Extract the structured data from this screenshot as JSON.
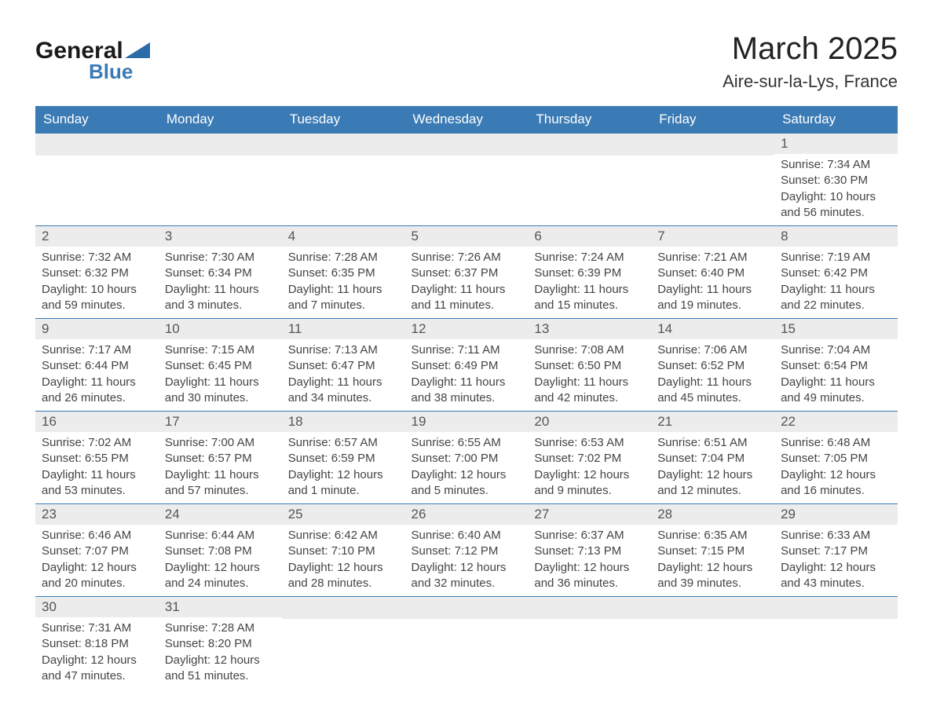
{
  "brand": {
    "name1": "General",
    "name2": "Blue"
  },
  "title": "March 2025",
  "location": "Aire-sur-la-Lys, France",
  "colors": {
    "header_bg": "#3a7ab5",
    "header_text": "#ffffff",
    "daynum_bg": "#ececec",
    "border": "#3a7ab5",
    "body_text": "#444444",
    "title_text": "#222222"
  },
  "weekdays": [
    "Sunday",
    "Monday",
    "Tuesday",
    "Wednesday",
    "Thursday",
    "Friday",
    "Saturday"
  ],
  "weeks": [
    [
      {
        "num": "",
        "sunrise": "",
        "sunset": "",
        "daylight": ""
      },
      {
        "num": "",
        "sunrise": "",
        "sunset": "",
        "daylight": ""
      },
      {
        "num": "",
        "sunrise": "",
        "sunset": "",
        "daylight": ""
      },
      {
        "num": "",
        "sunrise": "",
        "sunset": "",
        "daylight": ""
      },
      {
        "num": "",
        "sunrise": "",
        "sunset": "",
        "daylight": ""
      },
      {
        "num": "",
        "sunrise": "",
        "sunset": "",
        "daylight": ""
      },
      {
        "num": "1",
        "sunrise": "Sunrise: 7:34 AM",
        "sunset": "Sunset: 6:30 PM",
        "daylight": "Daylight: 10 hours and 56 minutes."
      }
    ],
    [
      {
        "num": "2",
        "sunrise": "Sunrise: 7:32 AM",
        "sunset": "Sunset: 6:32 PM",
        "daylight": "Daylight: 10 hours and 59 minutes."
      },
      {
        "num": "3",
        "sunrise": "Sunrise: 7:30 AM",
        "sunset": "Sunset: 6:34 PM",
        "daylight": "Daylight: 11 hours and 3 minutes."
      },
      {
        "num": "4",
        "sunrise": "Sunrise: 7:28 AM",
        "sunset": "Sunset: 6:35 PM",
        "daylight": "Daylight: 11 hours and 7 minutes."
      },
      {
        "num": "5",
        "sunrise": "Sunrise: 7:26 AM",
        "sunset": "Sunset: 6:37 PM",
        "daylight": "Daylight: 11 hours and 11 minutes."
      },
      {
        "num": "6",
        "sunrise": "Sunrise: 7:24 AM",
        "sunset": "Sunset: 6:39 PM",
        "daylight": "Daylight: 11 hours and 15 minutes."
      },
      {
        "num": "7",
        "sunrise": "Sunrise: 7:21 AM",
        "sunset": "Sunset: 6:40 PM",
        "daylight": "Daylight: 11 hours and 19 minutes."
      },
      {
        "num": "8",
        "sunrise": "Sunrise: 7:19 AM",
        "sunset": "Sunset: 6:42 PM",
        "daylight": "Daylight: 11 hours and 22 minutes."
      }
    ],
    [
      {
        "num": "9",
        "sunrise": "Sunrise: 7:17 AM",
        "sunset": "Sunset: 6:44 PM",
        "daylight": "Daylight: 11 hours and 26 minutes."
      },
      {
        "num": "10",
        "sunrise": "Sunrise: 7:15 AM",
        "sunset": "Sunset: 6:45 PM",
        "daylight": "Daylight: 11 hours and 30 minutes."
      },
      {
        "num": "11",
        "sunrise": "Sunrise: 7:13 AM",
        "sunset": "Sunset: 6:47 PM",
        "daylight": "Daylight: 11 hours and 34 minutes."
      },
      {
        "num": "12",
        "sunrise": "Sunrise: 7:11 AM",
        "sunset": "Sunset: 6:49 PM",
        "daylight": "Daylight: 11 hours and 38 minutes."
      },
      {
        "num": "13",
        "sunrise": "Sunrise: 7:08 AM",
        "sunset": "Sunset: 6:50 PM",
        "daylight": "Daylight: 11 hours and 42 minutes."
      },
      {
        "num": "14",
        "sunrise": "Sunrise: 7:06 AM",
        "sunset": "Sunset: 6:52 PM",
        "daylight": "Daylight: 11 hours and 45 minutes."
      },
      {
        "num": "15",
        "sunrise": "Sunrise: 7:04 AM",
        "sunset": "Sunset: 6:54 PM",
        "daylight": "Daylight: 11 hours and 49 minutes."
      }
    ],
    [
      {
        "num": "16",
        "sunrise": "Sunrise: 7:02 AM",
        "sunset": "Sunset: 6:55 PM",
        "daylight": "Daylight: 11 hours and 53 minutes."
      },
      {
        "num": "17",
        "sunrise": "Sunrise: 7:00 AM",
        "sunset": "Sunset: 6:57 PM",
        "daylight": "Daylight: 11 hours and 57 minutes."
      },
      {
        "num": "18",
        "sunrise": "Sunrise: 6:57 AM",
        "sunset": "Sunset: 6:59 PM",
        "daylight": "Daylight: 12 hours and 1 minute."
      },
      {
        "num": "19",
        "sunrise": "Sunrise: 6:55 AM",
        "sunset": "Sunset: 7:00 PM",
        "daylight": "Daylight: 12 hours and 5 minutes."
      },
      {
        "num": "20",
        "sunrise": "Sunrise: 6:53 AM",
        "sunset": "Sunset: 7:02 PM",
        "daylight": "Daylight: 12 hours and 9 minutes."
      },
      {
        "num": "21",
        "sunrise": "Sunrise: 6:51 AM",
        "sunset": "Sunset: 7:04 PM",
        "daylight": "Daylight: 12 hours and 12 minutes."
      },
      {
        "num": "22",
        "sunrise": "Sunrise: 6:48 AM",
        "sunset": "Sunset: 7:05 PM",
        "daylight": "Daylight: 12 hours and 16 minutes."
      }
    ],
    [
      {
        "num": "23",
        "sunrise": "Sunrise: 6:46 AM",
        "sunset": "Sunset: 7:07 PM",
        "daylight": "Daylight: 12 hours and 20 minutes."
      },
      {
        "num": "24",
        "sunrise": "Sunrise: 6:44 AM",
        "sunset": "Sunset: 7:08 PM",
        "daylight": "Daylight: 12 hours and 24 minutes."
      },
      {
        "num": "25",
        "sunrise": "Sunrise: 6:42 AM",
        "sunset": "Sunset: 7:10 PM",
        "daylight": "Daylight: 12 hours and 28 minutes."
      },
      {
        "num": "26",
        "sunrise": "Sunrise: 6:40 AM",
        "sunset": "Sunset: 7:12 PM",
        "daylight": "Daylight: 12 hours and 32 minutes."
      },
      {
        "num": "27",
        "sunrise": "Sunrise: 6:37 AM",
        "sunset": "Sunset: 7:13 PM",
        "daylight": "Daylight: 12 hours and 36 minutes."
      },
      {
        "num": "28",
        "sunrise": "Sunrise: 6:35 AM",
        "sunset": "Sunset: 7:15 PM",
        "daylight": "Daylight: 12 hours and 39 minutes."
      },
      {
        "num": "29",
        "sunrise": "Sunrise: 6:33 AM",
        "sunset": "Sunset: 7:17 PM",
        "daylight": "Daylight: 12 hours and 43 minutes."
      }
    ],
    [
      {
        "num": "30",
        "sunrise": "Sunrise: 7:31 AM",
        "sunset": "Sunset: 8:18 PM",
        "daylight": "Daylight: 12 hours and 47 minutes."
      },
      {
        "num": "31",
        "sunrise": "Sunrise: 7:28 AM",
        "sunset": "Sunset: 8:20 PM",
        "daylight": "Daylight: 12 hours and 51 minutes."
      },
      {
        "num": "",
        "sunrise": "",
        "sunset": "",
        "daylight": ""
      },
      {
        "num": "",
        "sunrise": "",
        "sunset": "",
        "daylight": ""
      },
      {
        "num": "",
        "sunrise": "",
        "sunset": "",
        "daylight": ""
      },
      {
        "num": "",
        "sunrise": "",
        "sunset": "",
        "daylight": ""
      },
      {
        "num": "",
        "sunrise": "",
        "sunset": "",
        "daylight": ""
      }
    ]
  ]
}
